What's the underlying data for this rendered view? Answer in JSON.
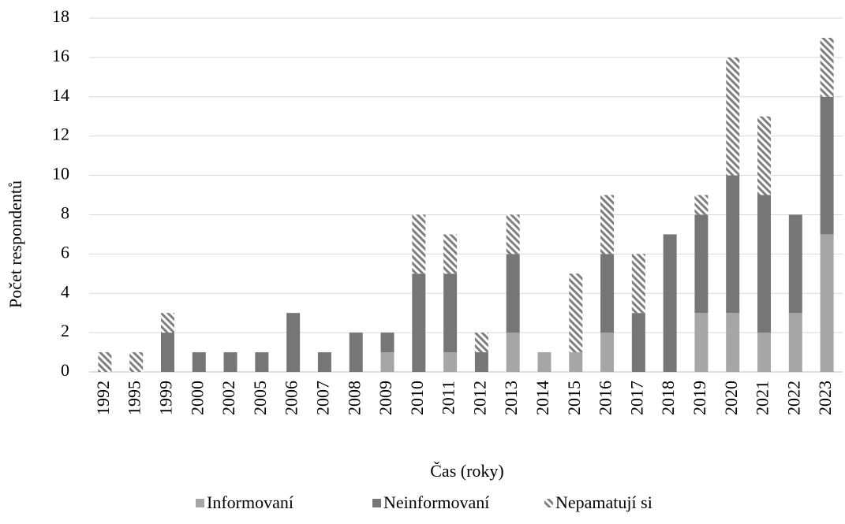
{
  "chart_data": {
    "type": "stacked_bar",
    "x_label": "Čas (roky)",
    "y_label": "Počet respondentů",
    "categories": [
      "1992",
      "1995",
      "1999",
      "2000",
      "2002",
      "2005",
      "2006",
      "2007",
      "2008",
      "2009",
      "2010",
      "2011",
      "2012",
      "2013",
      "2014",
      "2015",
      "2016",
      "2017",
      "2018",
      "2019",
      "2020",
      "2021",
      "2022",
      "2023"
    ],
    "series": [
      {
        "name": "Informovaní",
        "color": "#a6a6a6",
        "values": [
          0,
          0,
          0,
          0,
          0,
          0,
          0,
          0,
          0,
          1,
          0,
          1,
          0,
          2,
          1,
          1,
          2,
          0,
          0,
          3,
          3,
          2,
          3,
          7
        ]
      },
      {
        "name": "Neinformovaní",
        "color": "#767676",
        "values": [
          0,
          0,
          2,
          1,
          1,
          1,
          3,
          1,
          2,
          1,
          5,
          4,
          1,
          4,
          0,
          0,
          4,
          3,
          7,
          5,
          7,
          7,
          5,
          7
        ]
      },
      {
        "name": "Nepamatují si",
        "color": "#7f7f7f",
        "pattern": "hatch",
        "values": [
          1,
          1,
          1,
          0,
          0,
          0,
          0,
          0,
          0,
          0,
          3,
          2,
          1,
          2,
          0,
          4,
          3,
          3,
          0,
          1,
          6,
          4,
          0,
          3
        ]
      }
    ],
    "ylim": [
      0,
      18
    ],
    "yticks": [
      0,
      2,
      4,
      6,
      8,
      10,
      12,
      14,
      16,
      18
    ],
    "grid": true,
    "legend": "bottom"
  }
}
